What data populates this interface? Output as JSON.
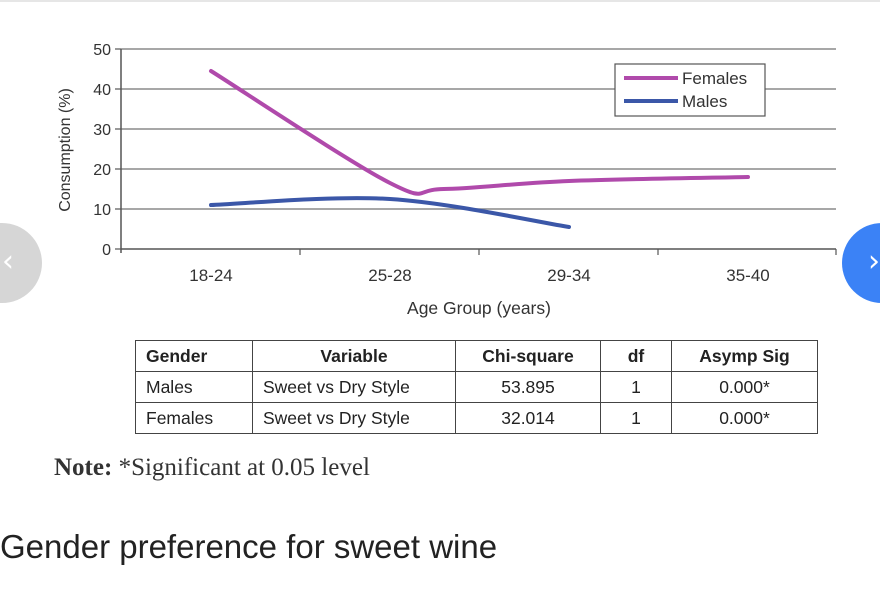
{
  "chart_data": {
    "type": "line",
    "categories": [
      "18-24",
      "25-28",
      "29-34",
      "35-40"
    ],
    "series": [
      {
        "name": "Females",
        "color": "#b04aab",
        "points": [
          [
            0,
            44.5
          ],
          [
            1,
            16.5
          ],
          [
            1.3,
            15.0
          ],
          [
            2,
            17.0
          ],
          [
            3,
            18.0
          ]
        ]
      },
      {
        "name": "Males",
        "color": "#3b57a8",
        "points": [
          [
            0,
            11.0
          ],
          [
            1,
            12.5
          ],
          [
            2,
            5.5
          ]
        ]
      }
    ],
    "yticks": [
      "0",
      "10",
      "20",
      "30",
      "40",
      "50"
    ],
    "ylim": [
      0,
      50
    ],
    "xlabel": "Age Group (years)",
    "ylabel": "Consumption (%)",
    "grid": "horizontal",
    "legend_position": "top-right"
  },
  "table": {
    "headers": [
      "Gender",
      "Variable",
      "Chi-square",
      "df",
      "Asymp Sig"
    ],
    "rows": [
      [
        "Males",
        "Sweet vs Dry Style",
        "53.895",
        "1",
        "0.000*"
      ],
      [
        "Females",
        "Sweet vs Dry Style",
        "32.014",
        "1",
        "0.000*"
      ]
    ]
  },
  "note": {
    "label": "Note:",
    "text": " *Significant at 0.05 level"
  },
  "caption": "Gender preference for sweet wine",
  "nav": {
    "prev": "‹",
    "next": "›"
  }
}
